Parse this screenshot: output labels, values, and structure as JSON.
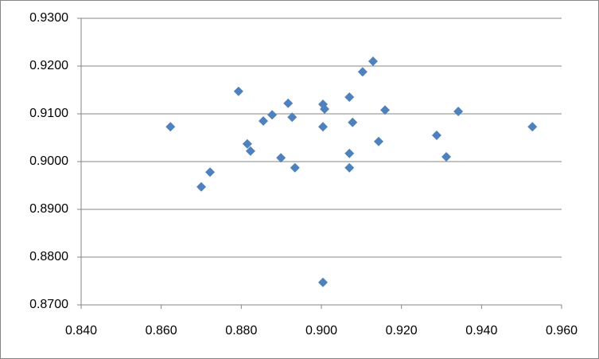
{
  "chart_data": {
    "type": "scatter",
    "color": "#4f81bd",
    "grid": true,
    "x": [
      0.8623,
      0.87,
      0.8722,
      0.8793,
      0.8815,
      0.8823,
      0.8855,
      0.8877,
      0.8899,
      0.8917,
      0.8927,
      0.8934,
      0.9004,
      0.9008,
      0.9004,
      0.9004,
      0.907,
      0.9078,
      0.907,
      0.907,
      0.9103,
      0.9129,
      0.9143,
      0.9159,
      0.9288,
      0.9312,
      0.9342,
      0.9527
    ],
    "values": [
      0.9073,
      0.8947,
      0.8978,
      0.9147,
      0.9037,
      0.9022,
      0.9085,
      0.9098,
      0.9008,
      0.9122,
      0.9093,
      0.8987,
      0.912,
      0.911,
      0.9073,
      0.8747,
      0.9135,
      0.9082,
      0.9017,
      0.8987,
      0.9188,
      0.921,
      0.9042,
      0.9108,
      0.9055,
      0.901,
      0.9105,
      0.9073
    ],
    "xlim": [
      0.84,
      0.96
    ],
    "xticks": [
      {
        "value": 0.84,
        "label": "0.840"
      },
      {
        "value": 0.86,
        "label": "0.860"
      },
      {
        "value": 0.88,
        "label": "0.880"
      },
      {
        "value": 0.9,
        "label": "0.900"
      },
      {
        "value": 0.92,
        "label": "0.920"
      },
      {
        "value": 0.94,
        "label": "0.940"
      },
      {
        "value": 0.96,
        "label": "0.960"
      }
    ],
    "ylim": [
      0.87,
      0.93
    ],
    "yticks": [
      {
        "value": 0.87,
        "label": "0.8700"
      },
      {
        "value": 0.88,
        "label": "0.8800"
      },
      {
        "value": 0.89,
        "label": "0.8900"
      },
      {
        "value": 0.9,
        "label": "0.9000"
      },
      {
        "value": 0.91,
        "label": "0.9100"
      },
      {
        "value": 0.92,
        "label": "0.9200"
      },
      {
        "value": 0.93,
        "label": "0.9300"
      }
    ]
  }
}
